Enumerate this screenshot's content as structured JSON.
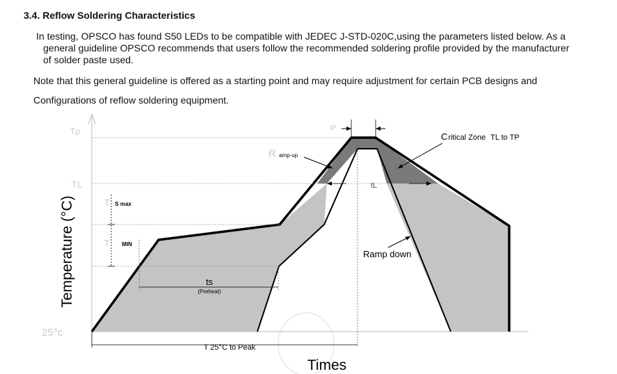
{
  "section": {
    "heading": "3.4. Reflow Soldering Characteristics",
    "paragraph1_line1": "In testing, OPSCO has found S50 LEDs to be compatible with JEDEC J-STD-020C,using the parameters listed below. As a",
    "paragraph1_line2": "general guideline OPSCO recommends that users follow the recommended soldering profile provided by the manufacturer",
    "paragraph1_line3": "of solder paste used.",
    "paragraph2": "Note that this general guideline is offered as a starting point and may require adjustment for certain PCB designs and",
    "paragraph3": "Configurations of reflow soldering equipment."
  },
  "diagram": {
    "y_axis_label": "Temperature (°C)",
    "x_axis_label": "Times",
    "tp_label": "Tp",
    "tl_label": "TL",
    "ts_max_label_t": "T",
    "ts_max_label_s": "S max",
    "ts_min_label_t": "T",
    "ts_min_label_s": "MIN",
    "t25_label": "25°c",
    "tp_time_label": "tP",
    "tl_time_label": "tL",
    "critical_zone_c": "C",
    "critical_zone_rest": "ritical Zone",
    "critical_zone_range": "TL to TP",
    "ramp_up_r": "R",
    "ramp_up_rest": "amp-up",
    "ramp_down_label": "Ramp down",
    "ts_label": "ts",
    "preheat_label": "(Preheat)",
    "t25_to_peak_label": "T 25°C to Peak",
    "colors": {
      "light_fill": "#c4c4c4",
      "dark_fill": "#7a7a7a",
      "outline": "#000000",
      "faint_label": "#c8c8c8"
    }
  }
}
